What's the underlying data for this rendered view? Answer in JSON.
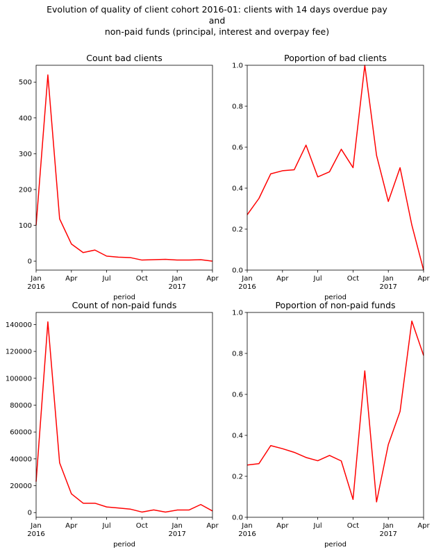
{
  "figure": {
    "title_line1": "Evolution of quality of client cohort 2016-01: clients with 14 days overdue pay",
    "title_line2": "and",
    "title_line3": "non-paid funds (principal, interest and overpay fee)"
  },
  "chart_data": [
    {
      "type": "line",
      "title": "Count bad clients",
      "xlabel": "period",
      "ylabel": "",
      "x": [
        "2016-01",
        "2016-02",
        "2016-03",
        "2016-04",
        "2016-05",
        "2016-06",
        "2016-07",
        "2016-08",
        "2016-09",
        "2016-10",
        "2016-11",
        "2016-12",
        "2017-01",
        "2017-02",
        "2017-03",
        "2017-04"
      ],
      "series": [
        {
          "values": [
            100,
            520,
            118,
            48,
            24,
            31,
            14,
            11,
            10,
            3,
            4,
            5,
            3,
            3,
            4,
            0
          ],
          "color": "#ff0000"
        }
      ],
      "ylim": [
        -25,
        547
      ],
      "yticks": [
        0,
        100,
        200,
        300,
        400,
        500
      ],
      "ytick_labels": [
        "0",
        "100",
        "200",
        "300",
        "400",
        "500"
      ],
      "xticks": [
        {
          "x": "2016-01",
          "label": "Jan",
          "sublabel": "2016"
        },
        {
          "x": "2016-04",
          "label": "Apr",
          "sublabel": ""
        },
        {
          "x": "2016-07",
          "label": "Jul",
          "sublabel": ""
        },
        {
          "x": "2016-10",
          "label": "Oct",
          "sublabel": ""
        },
        {
          "x": "2017-01",
          "label": "Jan",
          "sublabel": "2017"
        },
        {
          "x": "2017-04",
          "label": "Apr",
          "sublabel": ""
        }
      ],
      "grid": false
    },
    {
      "type": "line",
      "title": "Poportion of bad clients",
      "xlabel": "period",
      "ylabel": "",
      "x": [
        "2016-01",
        "2016-02",
        "2016-03",
        "2016-04",
        "2016-05",
        "2016-06",
        "2016-07",
        "2016-08",
        "2016-09",
        "2016-10",
        "2016-11",
        "2016-12",
        "2017-01",
        "2017-02",
        "2017-03",
        "2017-04"
      ],
      "series": [
        {
          "values": [
            0.27,
            0.35,
            0.47,
            0.485,
            0.49,
            0.61,
            0.455,
            0.48,
            0.59,
            0.5,
            1.0,
            0.56,
            0.335,
            0.5,
            0.22,
            0.0
          ],
          "color": "#ff0000"
        }
      ],
      "ylim": [
        0.0,
        1.0
      ],
      "yticks": [
        0.0,
        0.2,
        0.4,
        0.6,
        0.8,
        1.0
      ],
      "ytick_labels": [
        "0.0",
        "0.2",
        "0.4",
        "0.6",
        "0.8",
        "1.0"
      ],
      "xticks": [
        {
          "x": "2016-01",
          "label": "Jan",
          "sublabel": "2016"
        },
        {
          "x": "2016-04",
          "label": "Apr",
          "sublabel": ""
        },
        {
          "x": "2016-07",
          "label": "Jul",
          "sublabel": ""
        },
        {
          "x": "2016-10",
          "label": "Oct",
          "sublabel": ""
        },
        {
          "x": "2017-01",
          "label": "Jan",
          "sublabel": "2017"
        },
        {
          "x": "2017-04",
          "label": "Apr",
          "sublabel": ""
        }
      ],
      "grid": false
    },
    {
      "type": "line",
      "title": "Count of non-paid funds",
      "xlabel": "period",
      "ylabel": "",
      "x": [
        "2016-01",
        "2016-02",
        "2016-03",
        "2016-04",
        "2016-05",
        "2016-06",
        "2016-07",
        "2016-08",
        "2016-09",
        "2016-10",
        "2016-11",
        "2016-12",
        "2017-01",
        "2017-02",
        "2017-03",
        "2017-04"
      ],
      "series": [
        {
          "values": [
            23000,
            142000,
            37000,
            14000,
            7000,
            7000,
            4200,
            3400,
            2600,
            400,
            2000,
            400,
            1900,
            1900,
            6000,
            1200
          ],
          "color": "#ff0000"
        }
      ],
      "ylim": [
        -3500,
        149000
      ],
      "yticks": [
        0,
        20000,
        40000,
        60000,
        80000,
        100000,
        120000,
        140000
      ],
      "ytick_labels": [
        "0",
        "20000",
        "40000",
        "60000",
        "80000",
        "100000",
        "120000",
        "140000"
      ],
      "xticks": [
        {
          "x": "2016-01",
          "label": "Jan",
          "sublabel": "2016"
        },
        {
          "x": "2016-04",
          "label": "Apr",
          "sublabel": ""
        },
        {
          "x": "2016-07",
          "label": "Jul",
          "sublabel": ""
        },
        {
          "x": "2016-10",
          "label": "Oct",
          "sublabel": ""
        },
        {
          "x": "2017-01",
          "label": "Jan",
          "sublabel": "2017"
        },
        {
          "x": "2017-04",
          "label": "Apr",
          "sublabel": ""
        }
      ],
      "grid": false
    },
    {
      "type": "line",
      "title": "Poportion of non-paid funds",
      "xlabel": "period",
      "ylabel": "",
      "x": [
        "2016-01",
        "2016-02",
        "2016-03",
        "2016-04",
        "2016-05",
        "2016-06",
        "2016-07",
        "2016-08",
        "2016-09",
        "2016-10",
        "2016-11",
        "2016-12",
        "2017-01",
        "2017-02",
        "2017-03",
        "2017-04"
      ],
      "series": [
        {
          "values": [
            0.255,
            0.262,
            0.35,
            0.335,
            0.317,
            0.292,
            0.276,
            0.302,
            0.275,
            0.087,
            0.715,
            0.075,
            0.355,
            0.517,
            0.958,
            0.79
          ],
          "color": "#ff0000"
        }
      ],
      "ylim": [
        0.0,
        1.0
      ],
      "yticks": [
        0.0,
        0.2,
        0.4,
        0.6,
        0.8,
        1.0
      ],
      "ytick_labels": [
        "0.0",
        "0.2",
        "0.4",
        "0.6",
        "0.8",
        "1.0"
      ],
      "xticks": [
        {
          "x": "2016-01",
          "label": "Jan",
          "sublabel": "2016"
        },
        {
          "x": "2016-04",
          "label": "Apr",
          "sublabel": ""
        },
        {
          "x": "2016-07",
          "label": "Jul",
          "sublabel": ""
        },
        {
          "x": "2016-10",
          "label": "Oct",
          "sublabel": ""
        },
        {
          "x": "2017-01",
          "label": "Jan",
          "sublabel": "2017"
        },
        {
          "x": "2017-04",
          "label": "Apr",
          "sublabel": ""
        }
      ],
      "grid": false
    }
  ]
}
